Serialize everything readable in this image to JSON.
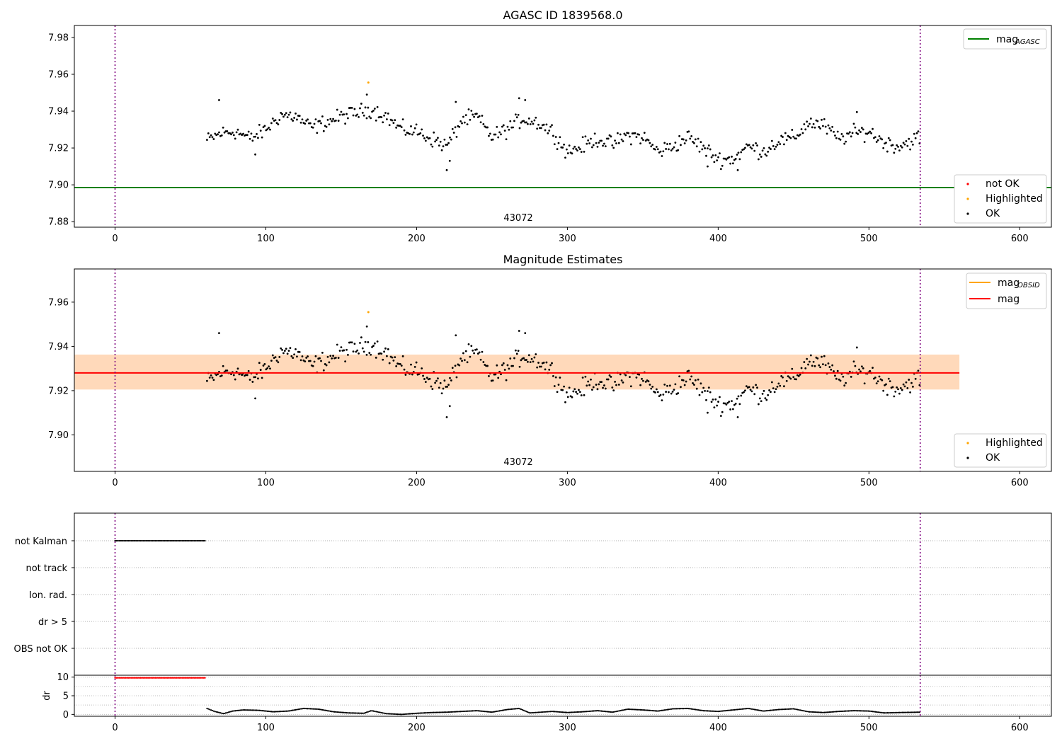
{
  "chart_data": [
    {
      "type": "scatter",
      "title": "AGASC ID 1839568.0",
      "xlim": [
        -27,
        621
      ],
      "ylim": [
        7.877,
        7.9865
      ],
      "xticks": [
        0,
        100,
        200,
        300,
        400,
        500,
        600
      ],
      "xtick_labels": [
        "0",
        "100",
        "200",
        "300",
        "400",
        "500",
        "600"
      ],
      "yticks": [
        7.88,
        7.9,
        7.92,
        7.94,
        7.96,
        7.98
      ],
      "ytick_labels": [
        "7.88",
        "7.90",
        "7.92",
        "7.94",
        "7.96",
        "7.98"
      ],
      "vlines": [
        0,
        534
      ],
      "obsid_label": {
        "text": "43072",
        "x": 267
      },
      "mag_agasc": 7.8985,
      "line_legend": [
        {
          "label": "mag",
          "subscript": "AGASC",
          "color": "#008000"
        }
      ],
      "marker_legend": [
        {
          "label": "not OK",
          "color": "#ff0000"
        },
        {
          "label": "Highlighted",
          "color": "#ffa500"
        },
        {
          "label": "OK",
          "color": "#000000"
        }
      ],
      "highlighted": [
        {
          "x": 168,
          "y": 7.9555
        }
      ],
      "series_ref": "mag_points"
    },
    {
      "type": "scatter",
      "title": "Magnitude Estimates",
      "xlim": [
        -27,
        621
      ],
      "ylim": [
        7.8835,
        7.975
      ],
      "xticks": [
        0,
        100,
        200,
        300,
        400,
        500,
        600
      ],
      "xtick_labels": [
        "0",
        "100",
        "200",
        "300",
        "400",
        "500",
        "600"
      ],
      "yticks": [
        7.9,
        7.92,
        7.94,
        7.96
      ],
      "ytick_labels": [
        "7.90",
        "7.92",
        "7.94",
        "7.96"
      ],
      "vlines": [
        0,
        534
      ],
      "obsid_label": {
        "text": "43072",
        "x": 267
      },
      "mag": 7.928,
      "mag_band": [
        7.9205,
        7.9363
      ],
      "mag_obsid_band_x": [
        0,
        560
      ],
      "line_legend": [
        {
          "label": "mag",
          "subscript": "OBSID",
          "color": "#ffa500"
        },
        {
          "label": "mag",
          "subscript": "",
          "color": "#ff0000"
        }
      ],
      "marker_legend": [
        {
          "label": "Highlighted",
          "color": "#ffa500"
        },
        {
          "label": "OK",
          "color": "#000000"
        }
      ],
      "highlighted": [
        {
          "x": 168,
          "y": 7.9555
        }
      ],
      "series_ref": "mag_points"
    },
    {
      "type": "scatter",
      "title": "",
      "xlim": [
        -27,
        621
      ],
      "categories": [
        "not Kalman",
        "not track",
        "Ion. rad.",
        "dr > 5",
        "OBS not OK"
      ],
      "flags": {
        "not Kalman": [
          0,
          60
        ]
      },
      "vlines": [
        0,
        534
      ]
    },
    {
      "type": "scatter",
      "title": "",
      "ylabel": "dr",
      "xlim": [
        -27,
        621
      ],
      "ylim": [
        -0.5,
        10.5
      ],
      "xticks": [
        0,
        100,
        200,
        300,
        400,
        500,
        600
      ],
      "xtick_labels": [
        "0",
        "100",
        "200",
        "300",
        "400",
        "500",
        "600"
      ],
      "yticks": [
        0,
        5,
        10
      ],
      "ytick_labels": [
        "0",
        "5",
        "10"
      ],
      "vlines": [
        0,
        534
      ],
      "flagged_dr": {
        "x_range": [
          0,
          60
        ],
        "value": 9.8
      },
      "dr_samples": [
        [
          61,
          1.6
        ],
        [
          66,
          0.8
        ],
        [
          72,
          0.2
        ],
        [
          78,
          0.9
        ],
        [
          85,
          1.2
        ],
        [
          95,
          1.1
        ],
        [
          105,
          0.7
        ],
        [
          115,
          0.9
        ],
        [
          125,
          1.6
        ],
        [
          135,
          1.4
        ],
        [
          145,
          0.7
        ],
        [
          155,
          0.4
        ],
        [
          165,
          0.3
        ],
        [
          170,
          1.0
        ],
        [
          180,
          0.2
        ],
        [
          190,
          0.0
        ],
        [
          200,
          0.3
        ],
        [
          210,
          0.5
        ],
        [
          220,
          0.6
        ],
        [
          230,
          0.8
        ],
        [
          240,
          1.0
        ],
        [
          250,
          0.6
        ],
        [
          260,
          1.3
        ],
        [
          268,
          1.6
        ],
        [
          275,
          0.4
        ],
        [
          290,
          0.8
        ],
        [
          300,
          0.5
        ],
        [
          310,
          0.7
        ],
        [
          320,
          1.0
        ],
        [
          330,
          0.6
        ],
        [
          340,
          1.4
        ],
        [
          350,
          1.2
        ],
        [
          360,
          0.9
        ],
        [
          370,
          1.5
        ],
        [
          380,
          1.6
        ],
        [
          390,
          1.0
        ],
        [
          400,
          0.8
        ],
        [
          410,
          1.2
        ],
        [
          420,
          1.6
        ],
        [
          430,
          0.9
        ],
        [
          440,
          1.3
        ],
        [
          450,
          1.5
        ],
        [
          460,
          0.7
        ],
        [
          470,
          0.5
        ],
        [
          480,
          0.8
        ],
        [
          490,
          1.0
        ],
        [
          500,
          0.9
        ],
        [
          510,
          0.4
        ],
        [
          520,
          0.5
        ],
        [
          534,
          0.6
        ]
      ]
    }
  ],
  "mag_points": {
    "x_start": 61,
    "x_step": 0.89,
    "keypoints": [
      [
        61,
        7.924
      ],
      [
        70,
        7.928
      ],
      [
        80,
        7.929
      ],
      [
        90,
        7.925
      ],
      [
        100,
        7.93
      ],
      [
        110,
        7.938
      ],
      [
        120,
        7.937
      ],
      [
        130,
        7.931
      ],
      [
        140,
        7.934
      ],
      [
        150,
        7.937
      ],
      [
        160,
        7.939
      ],
      [
        170,
        7.941
      ],
      [
        180,
        7.937
      ],
      [
        190,
        7.93
      ],
      [
        200,
        7.929
      ],
      [
        210,
        7.925
      ],
      [
        220,
        7.921
      ],
      [
        230,
        7.935
      ],
      [
        240,
        7.937
      ],
      [
        250,
        7.926
      ],
      [
        260,
        7.93
      ],
      [
        270,
        7.936
      ],
      [
        280,
        7.934
      ],
      [
        290,
        7.929
      ],
      [
        300,
        7.918
      ],
      [
        310,
        7.921
      ],
      [
        320,
        7.925
      ],
      [
        330,
        7.922
      ],
      [
        340,
        7.927
      ],
      [
        350,
        7.926
      ],
      [
        360,
        7.918
      ],
      [
        370,
        7.921
      ],
      [
        380,
        7.926
      ],
      [
        390,
        7.92
      ],
      [
        400,
        7.914
      ],
      [
        410,
        7.914
      ],
      [
        420,
        7.921
      ],
      [
        430,
        7.918
      ],
      [
        440,
        7.924
      ],
      [
        450,
        7.925
      ],
      [
        460,
        7.934
      ],
      [
        470,
        7.932
      ],
      [
        480,
        7.925
      ],
      [
        490,
        7.928
      ],
      [
        500,
        7.929
      ],
      [
        510,
        7.923
      ],
      [
        520,
        7.921
      ],
      [
        534,
        7.926
      ]
    ],
    "outliers": [
      [
        69,
        7.946
      ],
      [
        93,
        7.9165
      ],
      [
        167,
        7.949
      ],
      [
        220,
        7.908
      ],
      [
        222,
        7.913
      ],
      [
        226,
        7.945
      ],
      [
        268,
        7.947
      ],
      [
        272,
        7.946
      ],
      [
        393,
        7.91
      ],
      [
        413,
        7.908
      ],
      [
        492,
        7.9395
      ]
    ]
  }
}
